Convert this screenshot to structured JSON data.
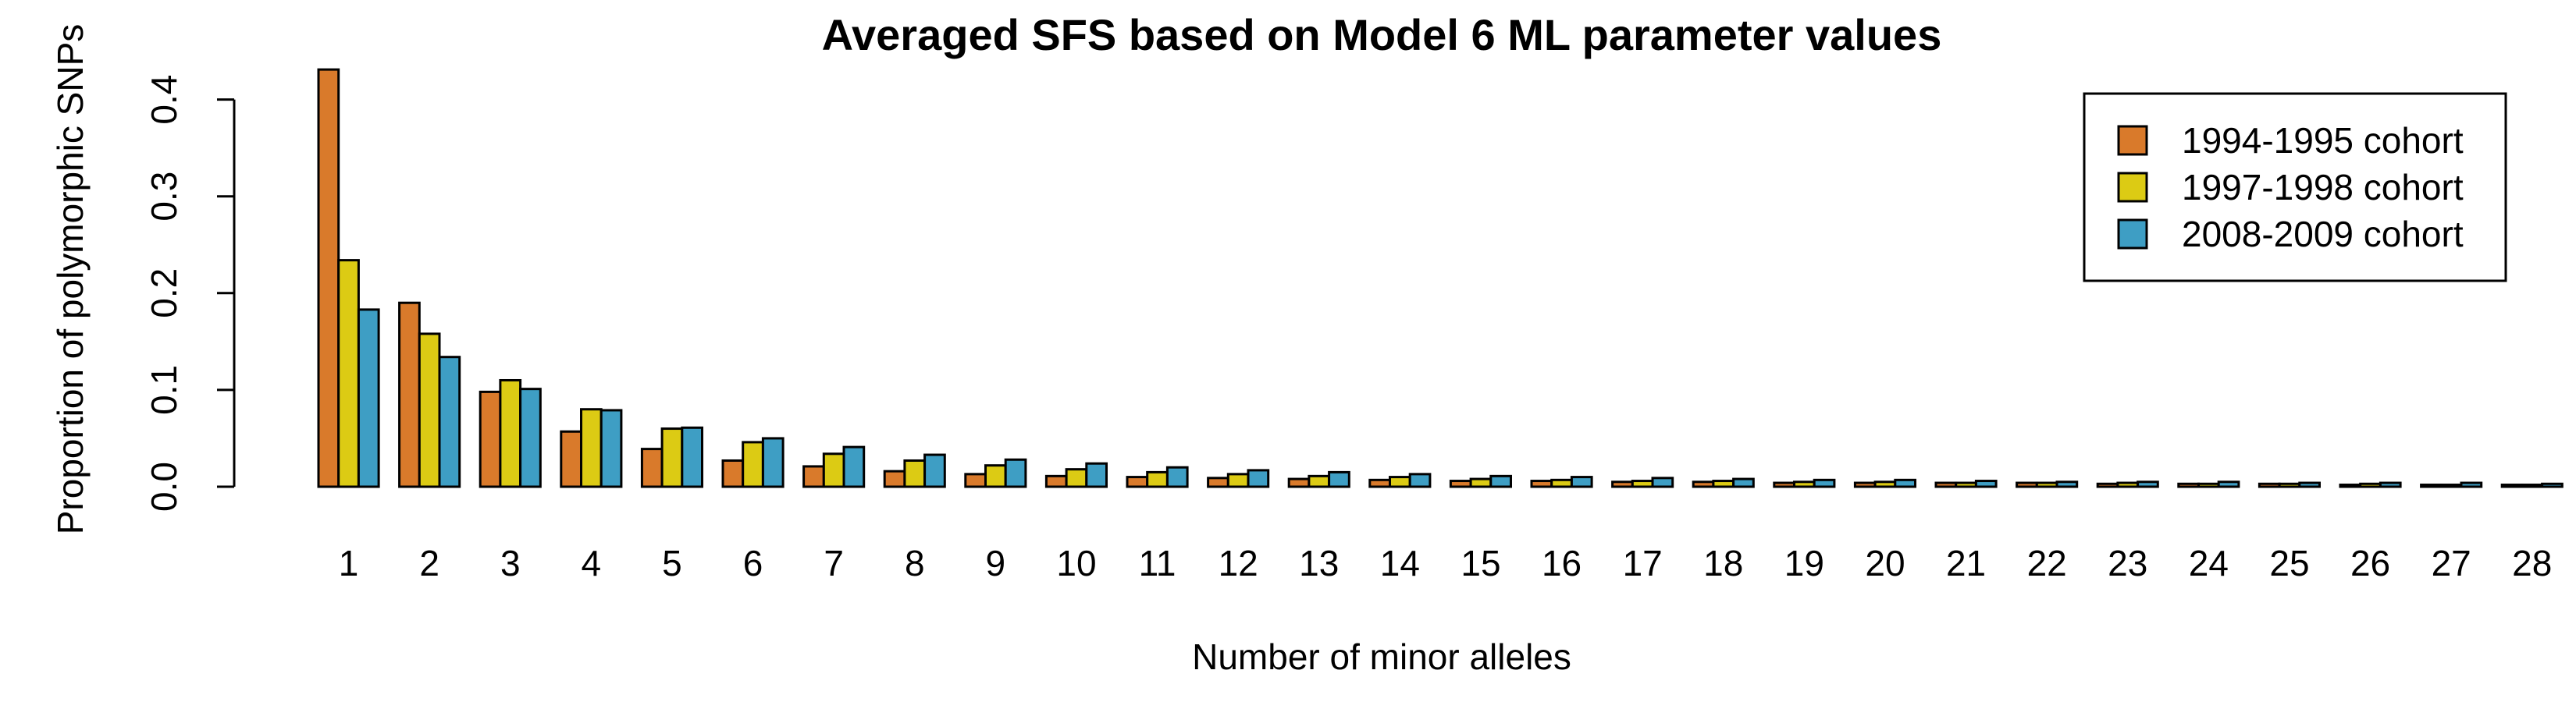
{
  "chart_data": {
    "type": "bar",
    "title": "Averaged SFS based on Model 6 ML parameter values",
    "xlabel": "Number of minor alleles",
    "ylabel": "Proportion of polymorphic SNPs",
    "ylim": [
      0,
      0.43
    ],
    "yticks": [
      "0.0",
      "0.1",
      "0.2",
      "0.3",
      "0.4"
    ],
    "categories": [
      "1",
      "2",
      "3",
      "4",
      "5",
      "6",
      "7",
      "8",
      "9",
      "10",
      "11",
      "12",
      "13",
      "14",
      "15",
      "16",
      "17",
      "18",
      "19",
      "20",
      "21",
      "22",
      "23",
      "24",
      "25",
      "26",
      "27",
      "28"
    ],
    "series": [
      {
        "name": "1994-1995 cohort",
        "color": "#D97A2B",
        "values": [
          0.431,
          0.19,
          0.098,
          0.057,
          0.039,
          0.027,
          0.021,
          0.016,
          0.013,
          0.011,
          0.01,
          0.009,
          0.008,
          0.007,
          0.006,
          0.006,
          0.005,
          0.005,
          0.004,
          0.004,
          0.004,
          0.004,
          0.003,
          0.003,
          0.003,
          0.002,
          0.002,
          0.002
        ]
      },
      {
        "name": "1997-1998 cohort",
        "color": "#DCCB14",
        "values": [
          0.234,
          0.158,
          0.11,
          0.08,
          0.06,
          0.046,
          0.034,
          0.027,
          0.022,
          0.018,
          0.015,
          0.013,
          0.011,
          0.01,
          0.008,
          0.007,
          0.006,
          0.006,
          0.005,
          0.005,
          0.004,
          0.004,
          0.004,
          0.003,
          0.003,
          0.003,
          0.002,
          0.002
        ]
      },
      {
        "name": "2008-2009 cohort",
        "color": "#3E9EC4",
        "values": [
          0.183,
          0.134,
          0.101,
          0.079,
          0.061,
          0.05,
          0.041,
          0.033,
          0.028,
          0.024,
          0.02,
          0.017,
          0.015,
          0.013,
          0.011,
          0.01,
          0.009,
          0.008,
          0.007,
          0.007,
          0.006,
          0.005,
          0.005,
          0.005,
          0.004,
          0.004,
          0.004,
          0.003
        ]
      }
    ],
    "legend_position": "top-right"
  }
}
